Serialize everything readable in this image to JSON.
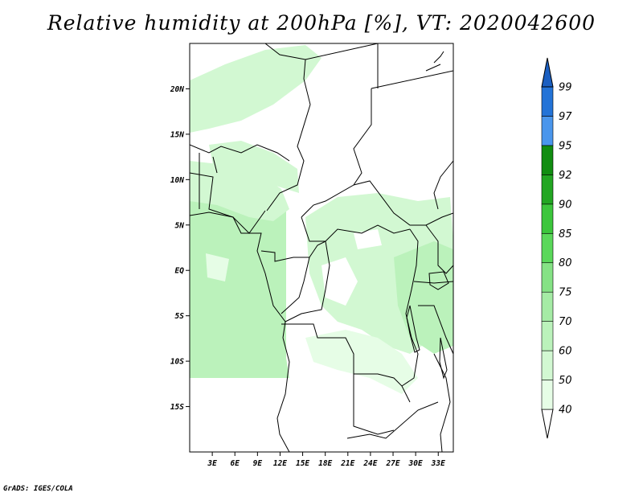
{
  "title": "Relative humidity at 200hPa [%], VT: 2020042600",
  "credit": "GrADS: IGES/COLA",
  "map": {
    "lon_range": [
      0,
      35
    ],
    "lat_range": [
      -20,
      25
    ],
    "lat_ticks": [
      {
        "lat": 20,
        "label": "20N"
      },
      {
        "lat": 15,
        "label": "15N"
      },
      {
        "lat": 10,
        "label": "10N"
      },
      {
        "lat": 5,
        "label": "5N"
      },
      {
        "lat": 0,
        "label": "EQ"
      },
      {
        "lat": -5,
        "label": "5S"
      },
      {
        "lat": -10,
        "label": "10S"
      },
      {
        "lat": -15,
        "label": "15S"
      }
    ],
    "lon_ticks": [
      {
        "lon": 3,
        "label": "3E"
      },
      {
        "lon": 6,
        "label": "6E"
      },
      {
        "lon": 9,
        "label": "9E"
      },
      {
        "lon": 12,
        "label": "12E"
      },
      {
        "lon": 15,
        "label": "15E"
      },
      {
        "lon": 18,
        "label": "18E"
      },
      {
        "lon": 21,
        "label": "21E"
      },
      {
        "lon": 24,
        "label": "24E"
      },
      {
        "lon": 27,
        "label": "27E"
      },
      {
        "lon": 30,
        "label": "30E"
      },
      {
        "lon": 33,
        "label": "33E"
      }
    ]
  },
  "colorbar": {
    "levels": [
      "40",
      "50",
      "60",
      "70",
      "75",
      "80",
      "85",
      "90",
      "92",
      "95",
      "97",
      "99"
    ],
    "colors": [
      "#ffffff",
      "#e6fde6",
      "#d2f8d2",
      "#bbf2bb",
      "#a5eba5",
      "#85e285",
      "#5ad85a",
      "#3cc63c",
      "#22a622",
      "#118d11",
      "#4a96ec",
      "#2373d7",
      "#1b5fc1"
    ]
  },
  "colors": {
    "humid_light": "#c8f5c0",
    "humid_mid": "#b0eea8",
    "humid_faint": "#e2fade"
  }
}
